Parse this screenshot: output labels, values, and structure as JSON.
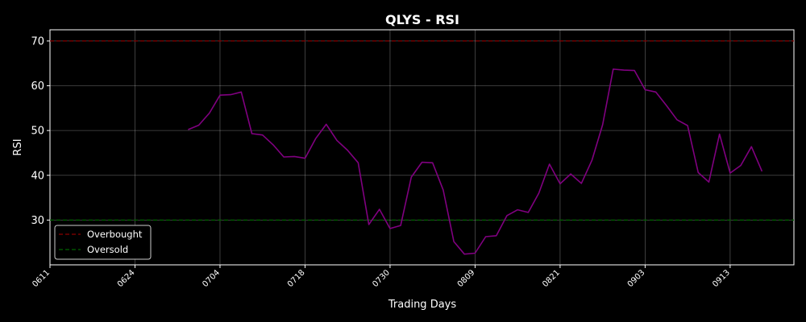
{
  "chart_data": {
    "type": "line",
    "title": "QLYS - RSI",
    "xlabel": "Trading Days",
    "ylabel": "RSI",
    "ylim": [
      20.0,
      72.5
    ],
    "xlim": [
      0,
      70
    ],
    "y_ticks": [
      30,
      40,
      50,
      60,
      70
    ],
    "x_tick_labels": [
      "0611",
      "0624",
      "0704",
      "0718",
      "0730",
      "0809",
      "0821",
      "0903",
      "0913"
    ],
    "x_tick_index": [
      0,
      8,
      16,
      24,
      32,
      40,
      48,
      56,
      64
    ],
    "grid": true,
    "legend_position": "lower-left",
    "series": [
      {
        "name": "RSI",
        "color": "#800080",
        "start_index": 13,
        "values": [
          50.2,
          51.2,
          53.9,
          57.9,
          58.0,
          58.6,
          49.3,
          49.0,
          46.8,
          44.1,
          44.2,
          43.8,
          48.2,
          51.4,
          47.8,
          45.6,
          42.8,
          29.0,
          32.4,
          28.1,
          28.8,
          39.6,
          42.9,
          42.8,
          36.7,
          25.2,
          22.4,
          22.6,
          26.3,
          26.5,
          31.0,
          32.3,
          31.7,
          36.0,
          42.5,
          38.1,
          40.3,
          38.2,
          43.4,
          51.3,
          63.7,
          63.5,
          63.4,
          59.1,
          58.6,
          55.6,
          52.4,
          51.1,
          40.6,
          38.5,
          49.2,
          40.5,
          42.2,
          46.4,
          40.9
        ]
      }
    ],
    "reference_lines": [
      {
        "name": "Overbought",
        "value": 70,
        "color": "#8b0000"
      },
      {
        "name": "Oversold",
        "value": 30,
        "color": "#006400"
      }
    ]
  }
}
